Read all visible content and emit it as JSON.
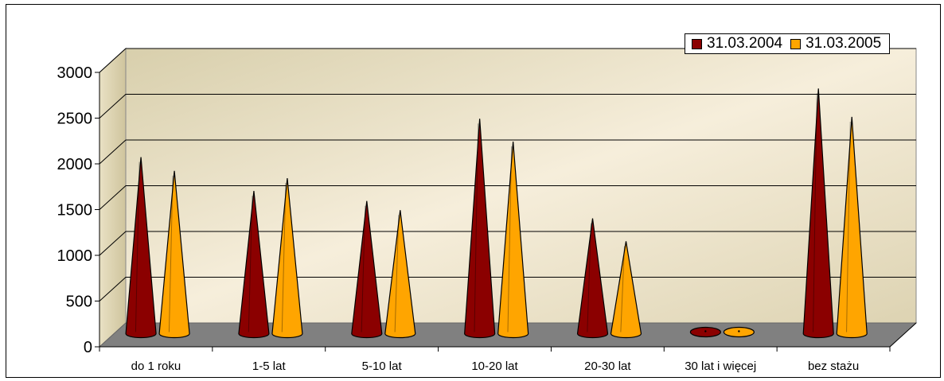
{
  "chart_data": {
    "type": "bar",
    "categories": [
      "do 1 roku",
      "1-5 lat",
      "5-10 lat",
      "10-20 lat",
      "20-30 lat",
      "30 lat i więcej",
      "bez stażu"
    ],
    "series": [
      {
        "name": "31.03.2004",
        "values": [
          1930,
          1560,
          1450,
          2350,
          1260,
          30,
          2680
        ],
        "color": "#8B0000"
      },
      {
        "name": "31.03.2005",
        "values": [
          1780,
          1700,
          1350,
          2100,
          1010,
          30,
          2370
        ],
        "color": "#FFA500"
      }
    ],
    "yticks": [
      0,
      500,
      1000,
      1500,
      2000,
      2500,
      3000
    ],
    "ylim": [
      0,
      3000
    ],
    "legend_position": "top-right",
    "grid": true,
    "mark_shape": "cone"
  }
}
